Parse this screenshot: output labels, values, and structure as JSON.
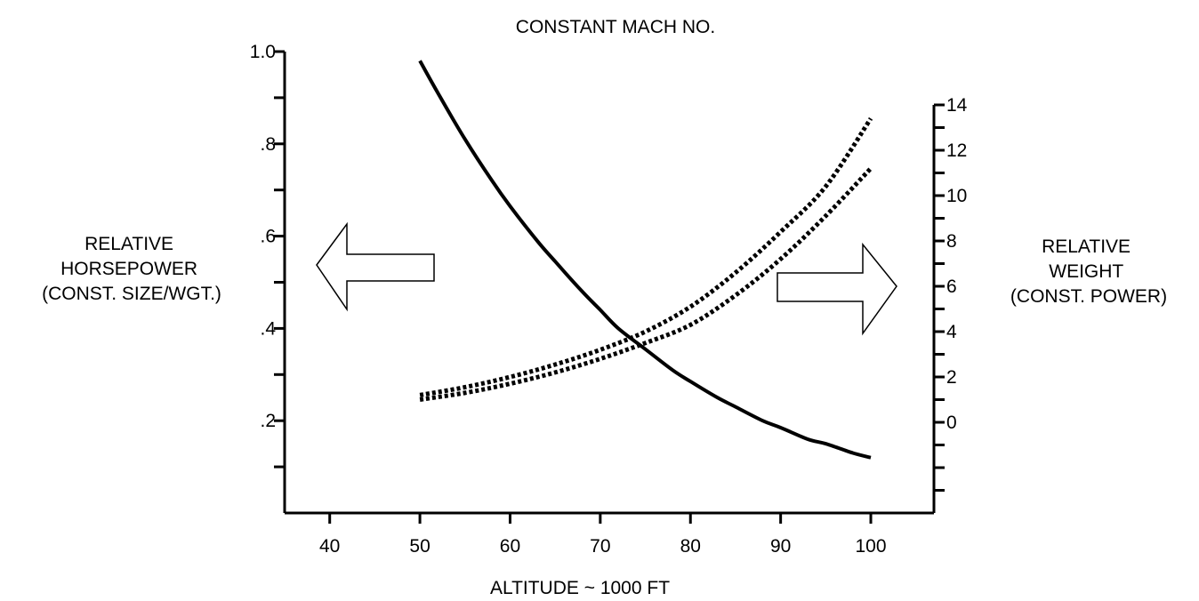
{
  "chart_data": {
    "type": "line",
    "title": "CONSTANT MACH NO.",
    "xlabel": "ALTITUDE ~ 1000 FT",
    "xlim": [
      35,
      107
    ],
    "x_ticks": [
      40,
      50,
      60,
      70,
      80,
      90,
      100
    ],
    "x_tick_labels": [
      "40",
      "50",
      "60",
      "70",
      "80",
      "90",
      "100"
    ],
    "y_left": {
      "label_lines": [
        "RELATIVE",
        "HORSEPOWER",
        "(CONST. SIZE/WGT.)"
      ],
      "lim": [
        0,
        1.0
      ],
      "ticks": [
        0.1,
        0.2,
        0.3,
        0.4,
        0.5,
        0.6,
        0.7,
        0.8,
        0.9,
        1.0
      ],
      "tick_labels": [
        {
          "value": 1.0,
          "label": "1.0"
        },
        {
          "value": 0.8,
          "label": ".8"
        },
        {
          "value": 0.6,
          "label": ".6"
        },
        {
          "value": 0.4,
          "label": ".4"
        },
        {
          "value": 0.2,
          "label": ".2"
        }
      ]
    },
    "y_right": {
      "label_lines": [
        "RELATIVE",
        "WEIGHT",
        "(CONST. POWER)"
      ],
      "lim": [
        -4,
        14
      ],
      "ticks": [
        -3,
        -2,
        -1,
        0,
        1,
        2,
        3,
        4,
        5,
        6,
        7,
        8,
        9,
        10,
        11,
        12,
        13,
        14
      ],
      "tick_labels": [
        "0",
        "2",
        "4",
        "6",
        "8",
        "10",
        "12",
        "14"
      ]
    },
    "series": [
      {
        "axis": "left",
        "style": "solid",
        "x": [
          50,
          52,
          55,
          58,
          60,
          63,
          65,
          68,
          70,
          72,
          75,
          78,
          80,
          83,
          85,
          88,
          90,
          93,
          95,
          98,
          100
        ],
        "y": [
          0.98,
          0.91,
          0.81,
          0.72,
          0.665,
          0.59,
          0.545,
          0.48,
          0.44,
          0.4,
          0.355,
          0.31,
          0.285,
          0.25,
          0.23,
          0.2,
          0.185,
          0.16,
          0.15,
          0.13,
          0.12
        ]
      },
      {
        "axis": "right",
        "style": "dotted-band-upper",
        "x": [
          50,
          55,
          60,
          65,
          70,
          75,
          80,
          85,
          90,
          95,
          100
        ],
        "y": [
          1.2,
          1.55,
          2.0,
          2.55,
          3.2,
          4.0,
          5.1,
          6.6,
          8.4,
          10.4,
          13.4
        ]
      },
      {
        "axis": "right",
        "style": "dotted-band-lower",
        "x": [
          50,
          55,
          60,
          65,
          70,
          75,
          80,
          85,
          90,
          95,
          100
        ],
        "y": [
          1.0,
          1.3,
          1.7,
          2.2,
          2.8,
          3.5,
          4.3,
          5.6,
          7.2,
          9.1,
          11.2
        ]
      }
    ],
    "arrows": [
      {
        "direction": "left",
        "points_to": "y_left"
      },
      {
        "direction": "right",
        "points_to": "y_right"
      }
    ],
    "grid": false,
    "legend": "none"
  }
}
